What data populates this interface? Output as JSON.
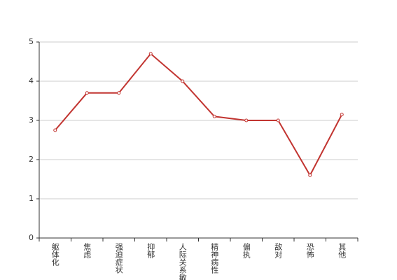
{
  "chart_data": {
    "type": "line",
    "categories": [
      "躯体化",
      "焦虑",
      "强迫症状",
      "抑郁",
      "人际关系敏感",
      "精神病性",
      "偏执",
      "敌对",
      "恐怖",
      "其他"
    ],
    "values": [
      2.75,
      3.7,
      3.7,
      4.7,
      4.0,
      3.1,
      3.0,
      3.0,
      1.6,
      3.15
    ],
    "color": "#c23531",
    "ylim": [
      0,
      5
    ],
    "yticks": [
      0,
      1,
      2,
      3,
      4,
      5
    ],
    "grid": true
  }
}
